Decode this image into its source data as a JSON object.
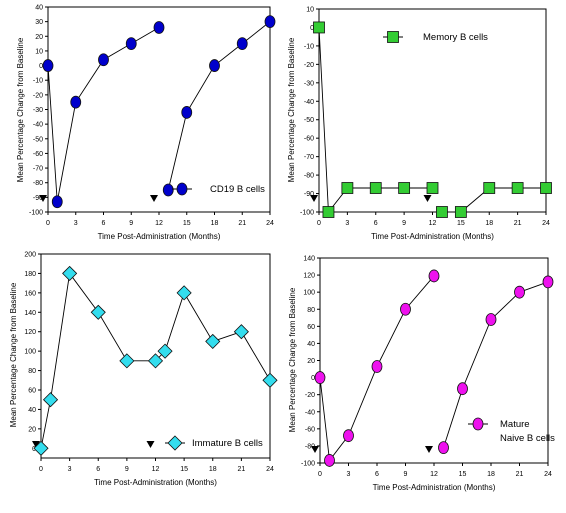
{
  "chart_data": [
    {
      "type": "line",
      "xlabel": "Time Post-Administration (Months)",
      "ylabel": "Mean Percentage Change from Baseline",
      "xlim": [
        0,
        24
      ],
      "ylim": [
        -100,
        40
      ],
      "xticks": [
        0,
        3,
        6,
        9,
        12,
        15,
        18,
        21,
        24
      ],
      "yticks": [
        -100,
        -90,
        -80,
        -70,
        -60,
        -50,
        -40,
        -30,
        -20,
        -10,
        0,
        10,
        20,
        30,
        40
      ],
      "marker": "circle",
      "color": "#0000cc",
      "dose_markers_x": [
        0,
        12
      ],
      "legend": {
        "text": "CD19 B cells",
        "position": "bottom-right"
      },
      "series": [
        {
          "name": "CD19 B cells",
          "segments": [
            [
              [
                0,
                0
              ],
              [
                1,
                -93
              ],
              [
                3,
                -25
              ],
              [
                6,
                4
              ],
              [
                9,
                15
              ],
              [
                12,
                26
              ]
            ],
            [
              [
                13,
                -85
              ],
              [
                15,
                -32
              ],
              [
                18,
                0
              ],
              [
                21,
                15
              ],
              [
                24,
                30
              ]
            ]
          ]
        }
      ]
    },
    {
      "type": "line",
      "xlabel": "Time Post-Administration (Months)",
      "ylabel": "Mean Percentage Change from Baseline",
      "xlim": [
        0,
        24
      ],
      "ylim": [
        -100,
        10
      ],
      "xticks": [
        0,
        3,
        6,
        9,
        12,
        15,
        18,
        21,
        24
      ],
      "yticks": [
        -100,
        -90,
        -80,
        -70,
        -60,
        -50,
        -40,
        -30,
        -20,
        -10,
        0,
        10
      ],
      "marker": "square",
      "color": "#33cc33",
      "dose_markers_x": [
        0,
        12
      ],
      "legend": {
        "text": "Memory B cells",
        "position": "top-right"
      },
      "series": [
        {
          "name": "Memory B cells",
          "segments": [
            [
              [
                0,
                0
              ],
              [
                1,
                -100
              ],
              [
                3,
                -87
              ],
              [
                6,
                -87
              ],
              [
                9,
                -87
              ],
              [
                12,
                -87
              ]
            ],
            [
              [
                13,
                -100
              ],
              [
                15,
                -100
              ],
              [
                18,
                -87
              ],
              [
                21,
                -87
              ],
              [
                24,
                -87
              ]
            ]
          ]
        }
      ]
    },
    {
      "type": "line",
      "xlabel": "Time Post-Administration (Months)",
      "ylabel": "Mean Percentage Change from Baseline",
      "xlim": [
        0,
        24
      ],
      "ylim": [
        -10,
        200
      ],
      "xticks": [
        0,
        3,
        6,
        9,
        12,
        15,
        18,
        21,
        24
      ],
      "yticks": [
        0,
        20,
        40,
        60,
        80,
        100,
        120,
        140,
        160,
        180,
        200
      ],
      "marker": "diamond",
      "color": "#33ddee",
      "dose_markers_x": [
        0,
        12
      ],
      "legend": {
        "text": "Immature B cells",
        "position": "bottom-right"
      },
      "series": [
        {
          "name": "Immature B cells",
          "segments": [
            [
              [
                0,
                0
              ],
              [
                1,
                50
              ],
              [
                3,
                180
              ],
              [
                6,
                140
              ],
              [
                9,
                90
              ],
              [
                12,
                90
              ],
              [
                13,
                100
              ],
              [
                15,
                160
              ],
              [
                18,
                110
              ],
              [
                21,
                120
              ],
              [
                24,
                70
              ]
            ]
          ]
        }
      ]
    },
    {
      "type": "line",
      "xlabel": "Time Post-Administration (Months)",
      "ylabel": "Mean Percentage Change from Baseline",
      "xlim": [
        0,
        24
      ],
      "ylim": [
        -100,
        140
      ],
      "xticks": [
        0,
        3,
        6,
        9,
        12,
        15,
        18,
        21,
        24
      ],
      "yticks": [
        -100,
        -80,
        -60,
        -40,
        -20,
        0,
        20,
        40,
        60,
        80,
        100,
        120,
        140
      ],
      "marker": "circle",
      "color": "#ee11ee",
      "dose_markers_x": [
        0,
        12
      ],
      "legend": {
        "text": "Mature Naive B cells",
        "lines": [
          "Mature",
          "Naive B cells"
        ],
        "position": "bottom-right"
      },
      "series": [
        {
          "name": "Mature Naive B cells",
          "segments": [
            [
              [
                0,
                0
              ],
              [
                1,
                -97
              ],
              [
                3,
                -68
              ],
              [
                6,
                13
              ],
              [
                9,
                80
              ],
              [
                12,
                119
              ]
            ],
            [
              [
                13,
                -82
              ],
              [
                15,
                -13
              ],
              [
                18,
                68
              ],
              [
                21,
                100
              ],
              [
                24,
                112
              ]
            ]
          ]
        }
      ]
    }
  ]
}
